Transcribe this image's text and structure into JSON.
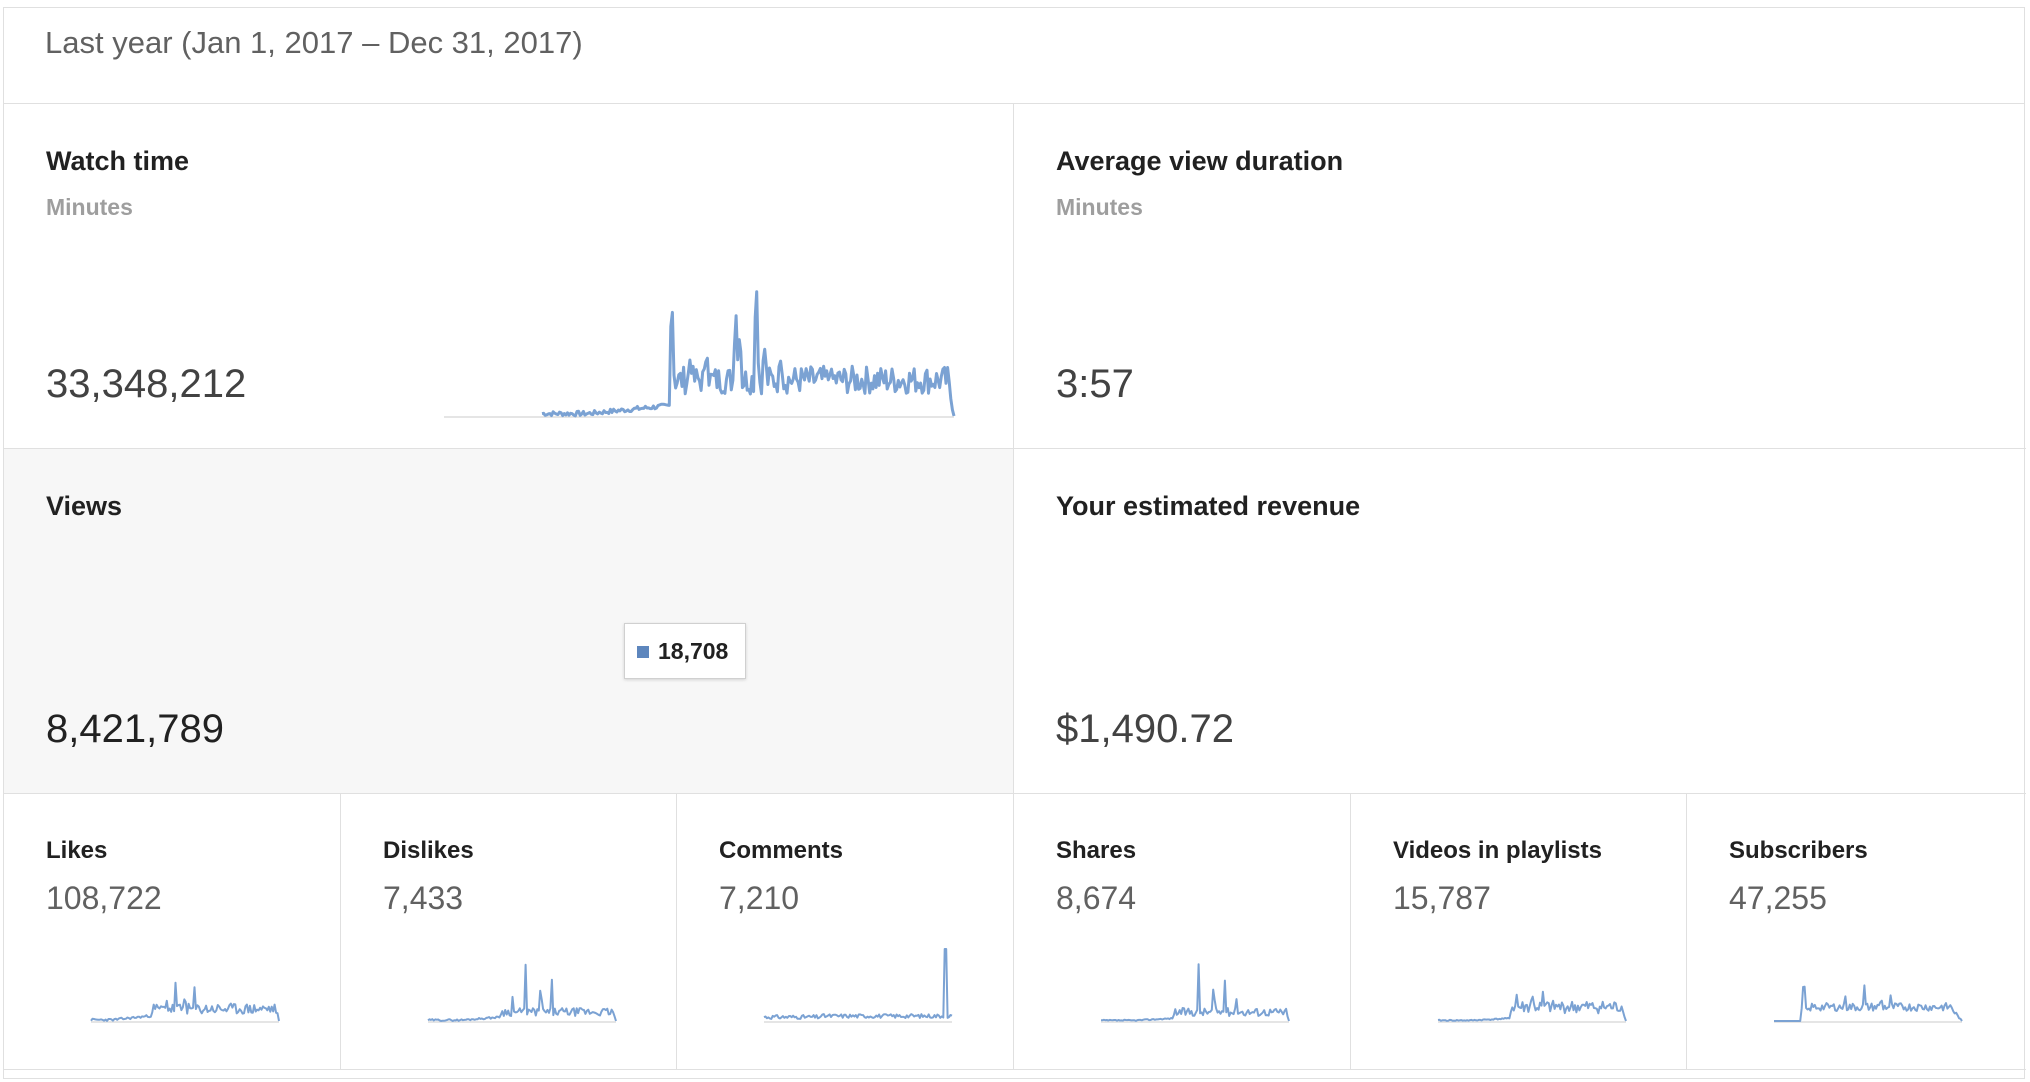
{
  "period": "Last year (Jan 1, 2017 – Dec 31, 2017)",
  "accent_color": "#7ba2d3",
  "main_cards": [
    {
      "title": "Watch time",
      "subtitle": "Minutes",
      "value": "33,348,212"
    },
    {
      "title": "Average view duration",
      "subtitle": "Minutes",
      "value": "3:57"
    },
    {
      "title": "Views",
      "subtitle": "",
      "value": "8,421,789",
      "selected": true
    },
    {
      "title": "Your estimated revenue",
      "subtitle": "",
      "value": "$1,490.72"
    }
  ],
  "tooltip": {
    "value": "18,708"
  },
  "mini_cards": [
    {
      "title": "Likes",
      "value": "108,722"
    },
    {
      "title": "Dislikes",
      "value": "7,433"
    },
    {
      "title": "Comments",
      "value": "7,210"
    },
    {
      "title": "Shares",
      "value": "8,674"
    },
    {
      "title": "Videos in playlists",
      "value": "15,787"
    },
    {
      "title": "Subscribers",
      "value": "47,255"
    }
  ]
}
